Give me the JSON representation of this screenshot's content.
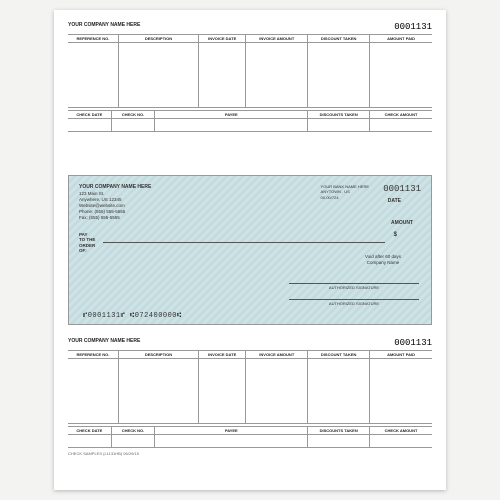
{
  "check_number": "0001131",
  "company_placeholder": "YOUR COMPANY NAME HERE",
  "stub_columns": [
    "REFERENCE NO.",
    "DESCRIPTION",
    "INVOICE DATE",
    "INVOICE AMOUNT",
    "DISCOUNT TAKEN",
    "AMOUNT PAID"
  ],
  "stub_totals": [
    "CHECK DATE",
    "CHECK NO.",
    "PAYEE",
    "DISCOUNTS TAKEN",
    "CHECK AMOUNT"
  ],
  "check": {
    "from": {
      "name": "YOUR COMPANY NAME HERE",
      "street": "123 Main St.",
      "city": "Anywhere, US 12345",
      "web": "Website@website.com",
      "phone": "Phone: (555) 555-5555",
      "fax": "Fax: (555) 555-5555"
    },
    "bank": {
      "name": "YOUR BANK NAME HERE",
      "city": "ANYTOWN , US",
      "routing": "00-00/724"
    },
    "date_label": "DATE",
    "amount_label": "AMOUNT",
    "dollar": "$",
    "pay_label": [
      "PAY",
      "TO THE",
      "ORDER",
      "OF:"
    ],
    "void": "Void after 60 days",
    "void2": "Company Name",
    "sig": "AUTHORIZED SIGNATURE",
    "micr": "⑈0001131⑈  ⑆072400000⑆"
  },
  "footer": "CHECK SAMPLES (L1131HB) 06/29/15",
  "colors": {
    "check_bg_a": "#cfe3e4",
    "check_bg_b": "#c3dbe0",
    "rule": "#999"
  }
}
